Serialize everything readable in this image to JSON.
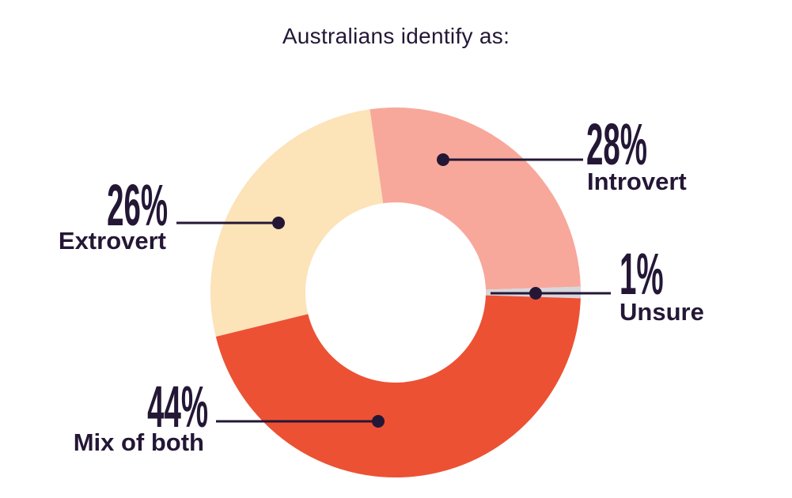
{
  "colors": {
    "background": "#FFFFFF",
    "text_dark": "#241736"
  },
  "chart_data": {
    "type": "pie",
    "subtype": "donut",
    "title": "Australians identify as:",
    "legend": "none",
    "segments": [
      {
        "label": "Introvert",
        "value": 28,
        "pct_label": "28%",
        "color": "#F7A89B"
      },
      {
        "label": "Unsure",
        "value": 1,
        "pct_label": "1%",
        "color": "#D7D6DC"
      },
      {
        "label": "Mix of both",
        "value": 44,
        "pct_label": "44%",
        "color": "#EC5134"
      },
      {
        "label": "Extrovert",
        "value": 26,
        "pct_label": "26%",
        "color": "#FCE3B8"
      }
    ],
    "layout": {
      "center": [
        500,
        370
      ],
      "outer_radius": 234,
      "inner_radius": 114,
      "segment_angles_deg": [
        [
          -8,
          88.2
        ],
        [
          88.2,
          91.8
        ],
        [
          91.8,
          256.2
        ],
        [
          256.2,
          352
        ]
      ],
      "callouts": [
        {
          "dot": [
            560,
            202
          ],
          "line": [
            [
              560,
              202
            ],
            [
              737,
              202
            ]
          ]
        },
        {
          "dot": [
            677,
            371
          ],
          "line": [
            [
              620,
              371
            ],
            [
              772,
              371
            ]
          ]
        },
        {
          "dot": [
            478,
            533
          ],
          "line": [
            [
              273,
              533
            ],
            [
              478,
              533
            ]
          ]
        },
        {
          "dot": [
            352,
            282
          ],
          "line": [
            [
              223,
              282
            ],
            [
              352,
              282
            ]
          ]
        }
      ],
      "line_color": "#241736",
      "line_width": 3,
      "dot_radius": 8
    }
  }
}
